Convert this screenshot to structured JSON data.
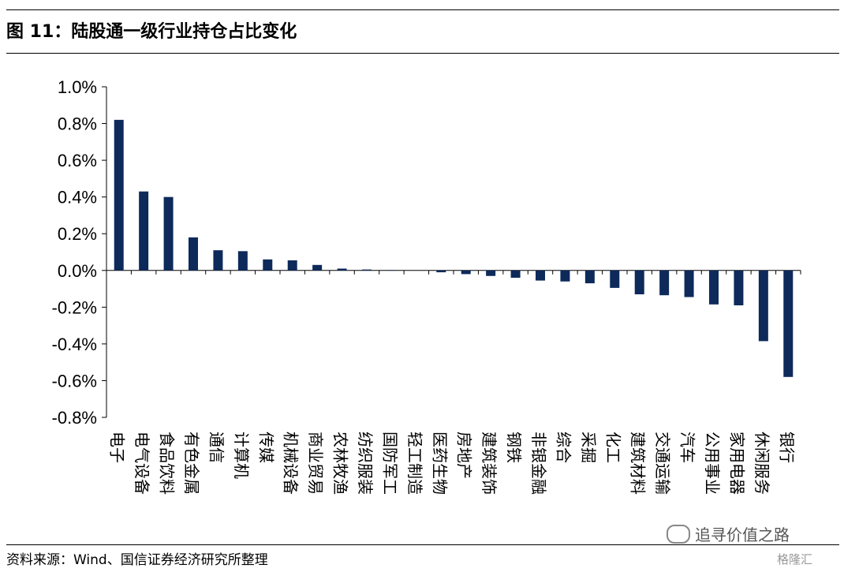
{
  "header": {
    "title": "图 11：陆股通一级行业持仓占比变化"
  },
  "footer": {
    "source": "资料来源：Wind、国信证券经济研究所整理",
    "watermark": "追寻价值之路",
    "logo": "格隆汇"
  },
  "chart_data": {
    "type": "bar",
    "title": "",
    "xlabel": "",
    "ylabel": "",
    "ylim": [
      -0.8,
      1.0
    ],
    "yticks": [
      "1.0%",
      "0.8%",
      "0.6%",
      "0.4%",
      "0.2%",
      "0.0%",
      "-0.2%",
      "-0.4%",
      "-0.6%",
      "-0.8%"
    ],
    "yticks_values": [
      1.0,
      0.8,
      0.6,
      0.4,
      0.2,
      0.0,
      -0.2,
      -0.4,
      -0.6,
      -0.8
    ],
    "unit": "%",
    "bar_color": "#0d2a5a",
    "grid": false,
    "categories": [
      "电子",
      "电气设备",
      "食品饮料",
      "有色金属",
      "通信",
      "计算机",
      "传媒",
      "机械设备",
      "商业贸易",
      "农林牧渔",
      "纺织服装",
      "国防军工",
      "轻工制造",
      "医药生物",
      "房地产",
      "建筑装饰",
      "钢铁",
      "非银金融",
      "综合",
      "采掘",
      "化工",
      "建筑材料",
      "交通运输",
      "汽车",
      "公用事业",
      "家用电器",
      "休闲服务",
      "银行"
    ],
    "values": [
      0.82,
      0.43,
      0.4,
      0.18,
      0.11,
      0.105,
      0.06,
      0.055,
      0.03,
      0.01,
      0.005,
      0.002,
      0.0,
      -0.01,
      -0.02,
      -0.03,
      -0.04,
      -0.055,
      -0.06,
      -0.07,
      -0.095,
      -0.13,
      -0.135,
      -0.145,
      -0.185,
      -0.19,
      -0.385,
      -0.58
    ]
  }
}
